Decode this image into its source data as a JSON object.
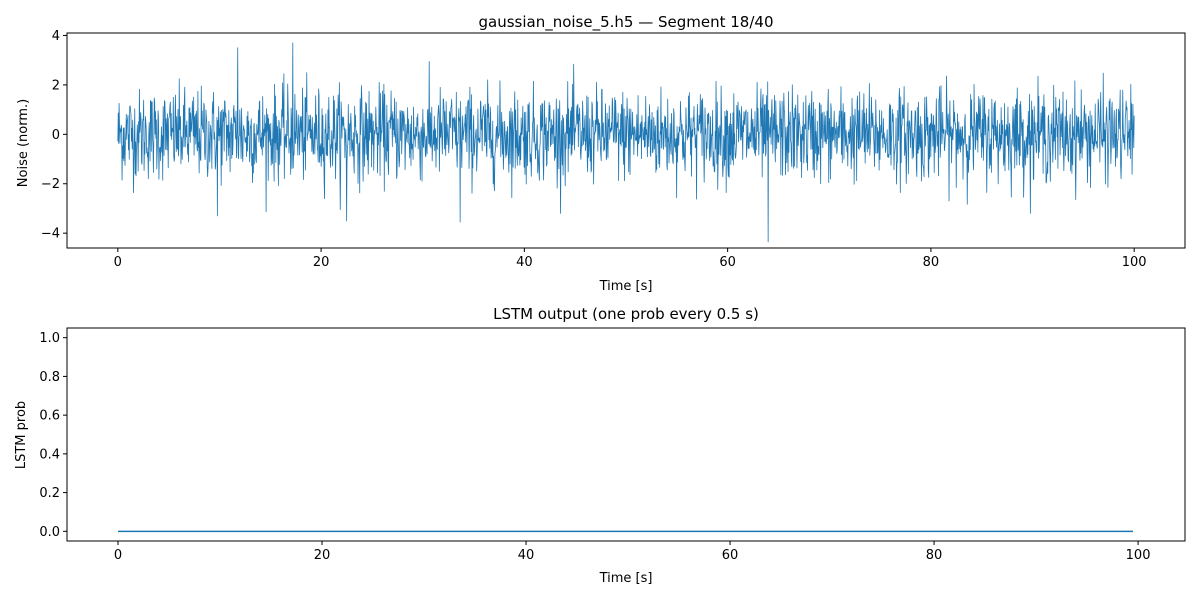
{
  "chart_data": [
    {
      "type": "line",
      "title": "gaussian_noise_5.h5 — Segment 18/40",
      "xlabel": "Time [s]",
      "ylabel": "Noise (norm.)",
      "xlim": [
        -5,
        105
      ],
      "ylim": [
        -4.6,
        4.1
      ],
      "xticks": [
        0,
        20,
        40,
        60,
        80,
        100
      ],
      "yticks": [
        -4,
        -2,
        0,
        2,
        4
      ],
      "xtick_labels": [
        "0",
        "20",
        "40",
        "60",
        "80",
        "100"
      ],
      "ytick_labels": [
        "−4",
        "−2",
        "0",
        "2",
        "4"
      ],
      "series": [
        {
          "name": "noise",
          "color": "#1f77b4",
          "description": "Gaussian noise, mean 0, std ~0.9, sampled densely over 0–100 s",
          "std": 0.9,
          "x_range": [
            0,
            100
          ],
          "samples": 2400,
          "extremes": [
            [
              17.2,
              3.7
            ],
            [
              11.8,
              3.5
            ],
            [
              64.0,
              -4.35
            ],
            [
              33.7,
              -3.55
            ],
            [
              22.5,
              -3.5
            ],
            [
              9.8,
              -3.3
            ]
          ]
        }
      ]
    },
    {
      "type": "line",
      "title": "LSTM output (one prob every 0.5 s)",
      "xlabel": "Time [s]",
      "ylabel": "LSTM prob",
      "xlim": [
        -5,
        104.6
      ],
      "ylim": [
        -0.05,
        1.05
      ],
      "xticks": [
        0,
        20,
        40,
        60,
        80,
        100
      ],
      "yticks": [
        0.0,
        0.2,
        0.4,
        0.6,
        0.8,
        1.0
      ],
      "xtick_labels": [
        "0",
        "20",
        "40",
        "60",
        "80",
        "100"
      ],
      "ytick_labels": [
        "0.0",
        "0.2",
        "0.4",
        "0.6",
        "0.8",
        "1.0"
      ],
      "series": [
        {
          "name": "LSTM prob",
          "color": "#1f77b4",
          "x_start": 0,
          "x_step": 0.5,
          "x_end": 99.5,
          "constant_value": 0.0
        }
      ]
    }
  ]
}
